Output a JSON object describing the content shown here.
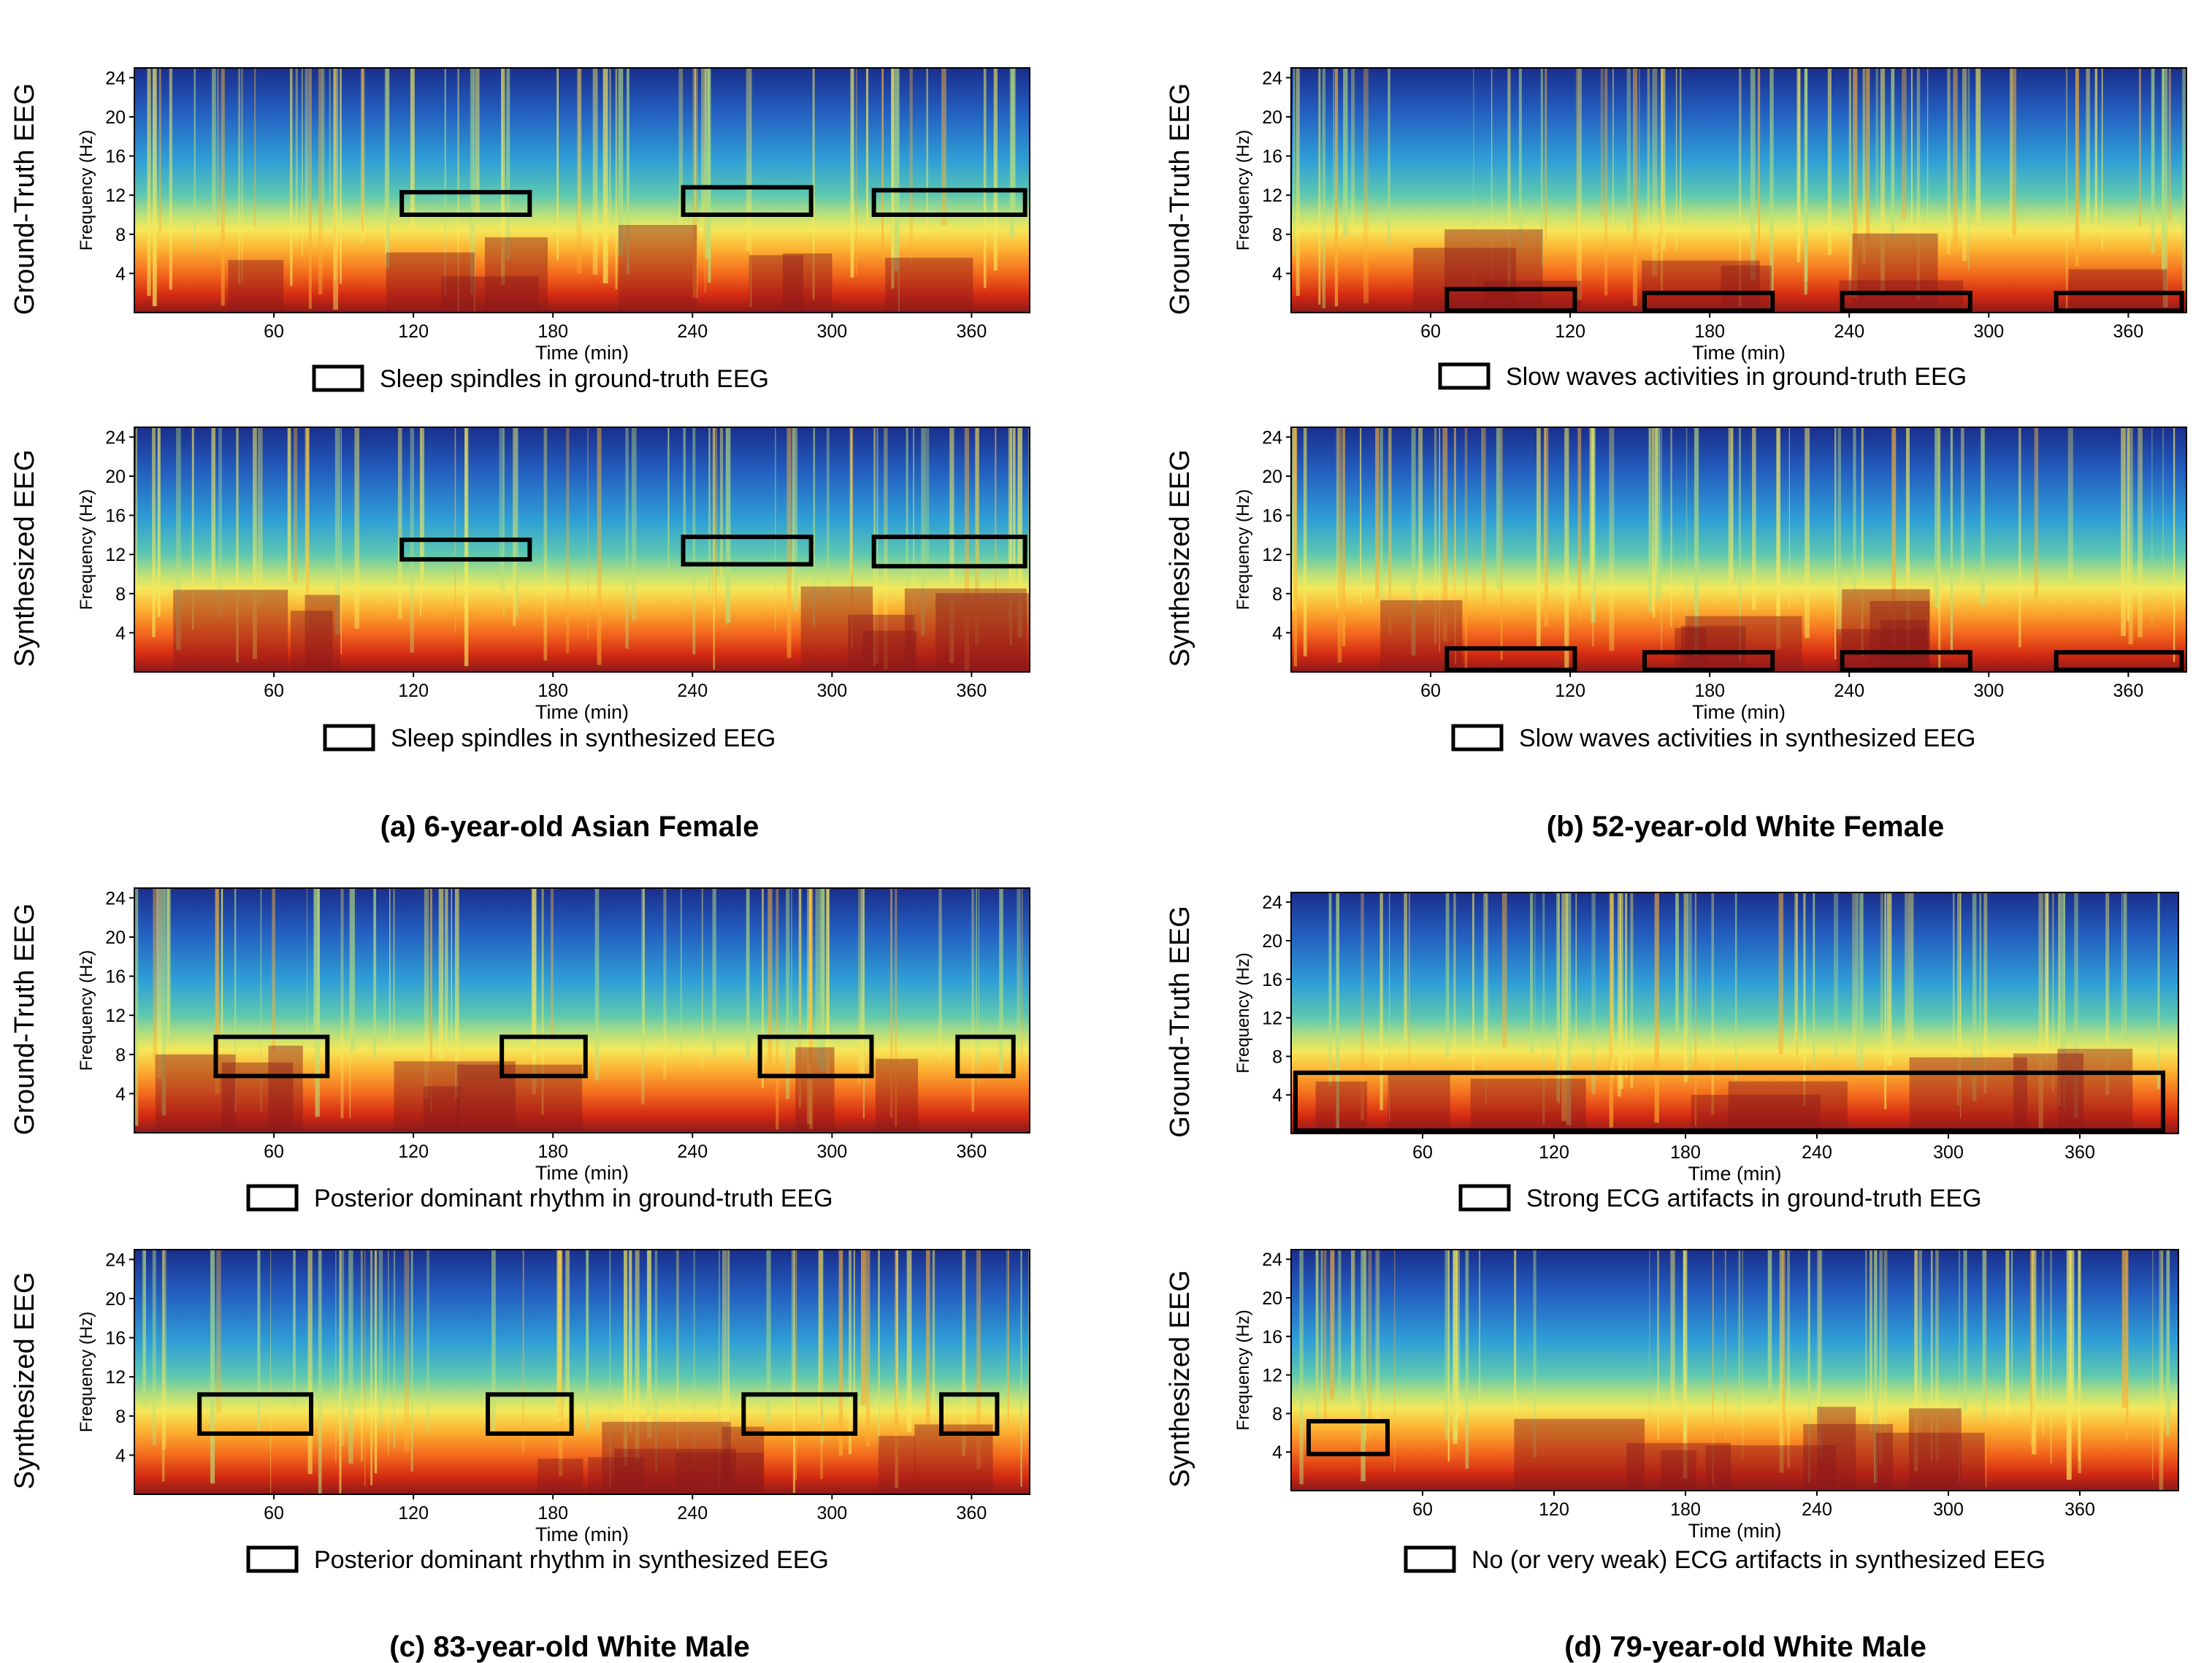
{
  "figure": {
    "colormap": [
      "#8b1a1a",
      "#d42a12",
      "#f36a1d",
      "#fcb232",
      "#f5e85a",
      "#b9e07a",
      "#5ec8b0",
      "#2f9fd6",
      "#235fc0",
      "#1a2e8c"
    ]
  },
  "chart_data": [
    {
      "type": "heatmap",
      "panel": "a",
      "row": "top",
      "ylabel_outer": "Ground-Truth EEG",
      "ylabel": "Frequency (Hz)",
      "xlabel": "Time (min)",
      "x_ticks": [
        "60",
        "120",
        "180",
        "240",
        "300",
        "360"
      ],
      "y_ticks": [
        "24",
        "20",
        "16",
        "12",
        "8",
        "4"
      ],
      "xlim": [
        0,
        385
      ],
      "ylim": [
        0,
        25
      ],
      "legend": "Sleep spindles in ground-truth EEG",
      "annotations": [
        {
          "t0": 115,
          "t1": 170,
          "f0": 10,
          "f1": 12.3
        },
        {
          "t0": 236,
          "t1": 291,
          "f0": 10,
          "f1": 12.8
        },
        {
          "t0": 318,
          "t1": 383,
          "f0": 10,
          "f1": 12.5
        }
      ]
    },
    {
      "type": "heatmap",
      "panel": "a",
      "row": "bottom",
      "ylabel_outer": "Synthesized EEG",
      "ylabel": "Frequency (Hz)",
      "xlabel": "Time (min)",
      "x_ticks": [
        "60",
        "120",
        "180",
        "240",
        "300",
        "360"
      ],
      "y_ticks": [
        "24",
        "20",
        "16",
        "12",
        "8",
        "4"
      ],
      "xlim": [
        0,
        385
      ],
      "ylim": [
        0,
        25
      ],
      "legend": "Sleep spindles in synthesized EEG",
      "annotations": [
        {
          "t0": 115,
          "t1": 170,
          "f0": 11.5,
          "f1": 13.5
        },
        {
          "t0": 236,
          "t1": 291,
          "f0": 11,
          "f1": 13.8
        },
        {
          "t0": 318,
          "t1": 383,
          "f0": 10.8,
          "f1": 13.8
        }
      ]
    },
    {
      "type": "heatmap",
      "panel": "b",
      "row": "top",
      "ylabel_outer": "Ground-Truth EEG",
      "ylabel": "Frequency (Hz)",
      "xlabel": "Time (min)",
      "x_ticks": [
        "60",
        "120",
        "180",
        "240",
        "300",
        "360"
      ],
      "y_ticks": [
        "24",
        "20",
        "16",
        "12",
        "8",
        "4"
      ],
      "xlim": [
        0,
        385
      ],
      "ylim": [
        0,
        25
      ],
      "legend": "Slow waves activities in ground-truth EEG",
      "annotations": [
        {
          "t0": 67,
          "t1": 122,
          "f0": 0.2,
          "f1": 2.4
        },
        {
          "t0": 152,
          "t1": 207,
          "f0": 0.2,
          "f1": 2.0
        },
        {
          "t0": 237,
          "t1": 292,
          "f0": 0.2,
          "f1": 2.0
        },
        {
          "t0": 329,
          "t1": 383,
          "f0": 0.2,
          "f1": 2.0
        }
      ]
    },
    {
      "type": "heatmap",
      "panel": "b",
      "row": "bottom",
      "ylabel_outer": "Synthesized EEG",
      "ylabel": "Frequency (Hz)",
      "xlabel": "Time (min)",
      "x_ticks": [
        "60",
        "120",
        "180",
        "240",
        "300",
        "360"
      ],
      "y_ticks": [
        "24",
        "20",
        "16",
        "12",
        "8",
        "4"
      ],
      "xlim": [
        0,
        385
      ],
      "ylim": [
        0,
        25
      ],
      "legend": "Slow waves activities in synthesized EEG",
      "annotations": [
        {
          "t0": 67,
          "t1": 122,
          "f0": 0.2,
          "f1": 2.4
        },
        {
          "t0": 152,
          "t1": 207,
          "f0": 0.2,
          "f1": 2.0
        },
        {
          "t0": 237,
          "t1": 292,
          "f0": 0.2,
          "f1": 2.0
        },
        {
          "t0": 329,
          "t1": 383,
          "f0": 0.2,
          "f1": 2.0
        }
      ]
    },
    {
      "type": "heatmap",
      "panel": "c",
      "row": "top",
      "ylabel_outer": "Ground-Truth EEG",
      "ylabel": "Frequency (Hz)",
      "xlabel": "Time (min)",
      "x_ticks": [
        "60",
        "120",
        "180",
        "240",
        "300",
        "360"
      ],
      "y_ticks": [
        "24",
        "20",
        "16",
        "12",
        "8",
        "4"
      ],
      "xlim": [
        0,
        385
      ],
      "ylim": [
        0,
        25
      ],
      "legend": "Posterior dominant rhythm in ground-truth EEG",
      "annotations": [
        {
          "t0": 35,
          "t1": 83,
          "f0": 5.8,
          "f1": 9.8
        },
        {
          "t0": 158,
          "t1": 194,
          "f0": 5.8,
          "f1": 9.8
        },
        {
          "t0": 269,
          "t1": 317,
          "f0": 5.8,
          "f1": 9.8
        },
        {
          "t0": 354,
          "t1": 378,
          "f0": 5.8,
          "f1": 9.8
        }
      ]
    },
    {
      "type": "heatmap",
      "panel": "c",
      "row": "bottom",
      "ylabel_outer": "Synthesized EEG",
      "ylabel": "Frequency (Hz)",
      "xlabel": "Time (min)",
      "x_ticks": [
        "60",
        "120",
        "180",
        "240",
        "300",
        "360"
      ],
      "y_ticks": [
        "24",
        "20",
        "16",
        "12",
        "8",
        "4"
      ],
      "xlim": [
        0,
        385
      ],
      "ylim": [
        0,
        25
      ],
      "legend": "Posterior dominant rhythm in synthesized EEG",
      "annotations": [
        {
          "t0": 28,
          "t1": 76,
          "f0": 6.2,
          "f1": 10.2
        },
        {
          "t0": 152,
          "t1": 188,
          "f0": 6.2,
          "f1": 10.2
        },
        {
          "t0": 262,
          "t1": 310,
          "f0": 6.2,
          "f1": 10.2
        },
        {
          "t0": 347,
          "t1": 371,
          "f0": 6.2,
          "f1": 10.2
        }
      ]
    },
    {
      "type": "heatmap",
      "panel": "d",
      "row": "top",
      "ylabel_outer": "Ground-Truth EEG",
      "ylabel": "Frequency (Hz)",
      "xlabel": "Time (min)",
      "x_ticks": [
        "60",
        "120",
        "180",
        "240",
        "300",
        "360"
      ],
      "y_ticks": [
        "24",
        "20",
        "16",
        "12",
        "8",
        "4"
      ],
      "xlim": [
        0,
        405
      ],
      "ylim": [
        0,
        25
      ],
      "legend": "Strong ECG artifacts in ground-truth EEG",
      "annotations": [
        {
          "t0": 2,
          "t1": 398,
          "f0": 0.3,
          "f1": 6.3
        }
      ]
    },
    {
      "type": "heatmap",
      "panel": "d",
      "row": "bottom",
      "ylabel_outer": "Synthesized EEG",
      "ylabel": "Frequency (Hz)",
      "xlabel": "Time (min)",
      "x_ticks": [
        "60",
        "120",
        "180",
        "240",
        "300",
        "360"
      ],
      "y_ticks": [
        "24",
        "20",
        "16",
        "12",
        "8",
        "4"
      ],
      "xlim": [
        0,
        405
      ],
      "ylim": [
        0,
        25
      ],
      "legend": "No (or very weak) ECG artifacts in synthesized EEG",
      "annotations": [
        {
          "t0": 8,
          "t1": 44,
          "f0": 3.8,
          "f1": 7.2
        }
      ]
    }
  ],
  "captions": {
    "a": "(a) 6-year-old Asian Female",
    "b": "(b) 52-year-old White Female",
    "c": "(c) 83-year-old White Male",
    "d": "(d) 79-year-old White Male"
  }
}
